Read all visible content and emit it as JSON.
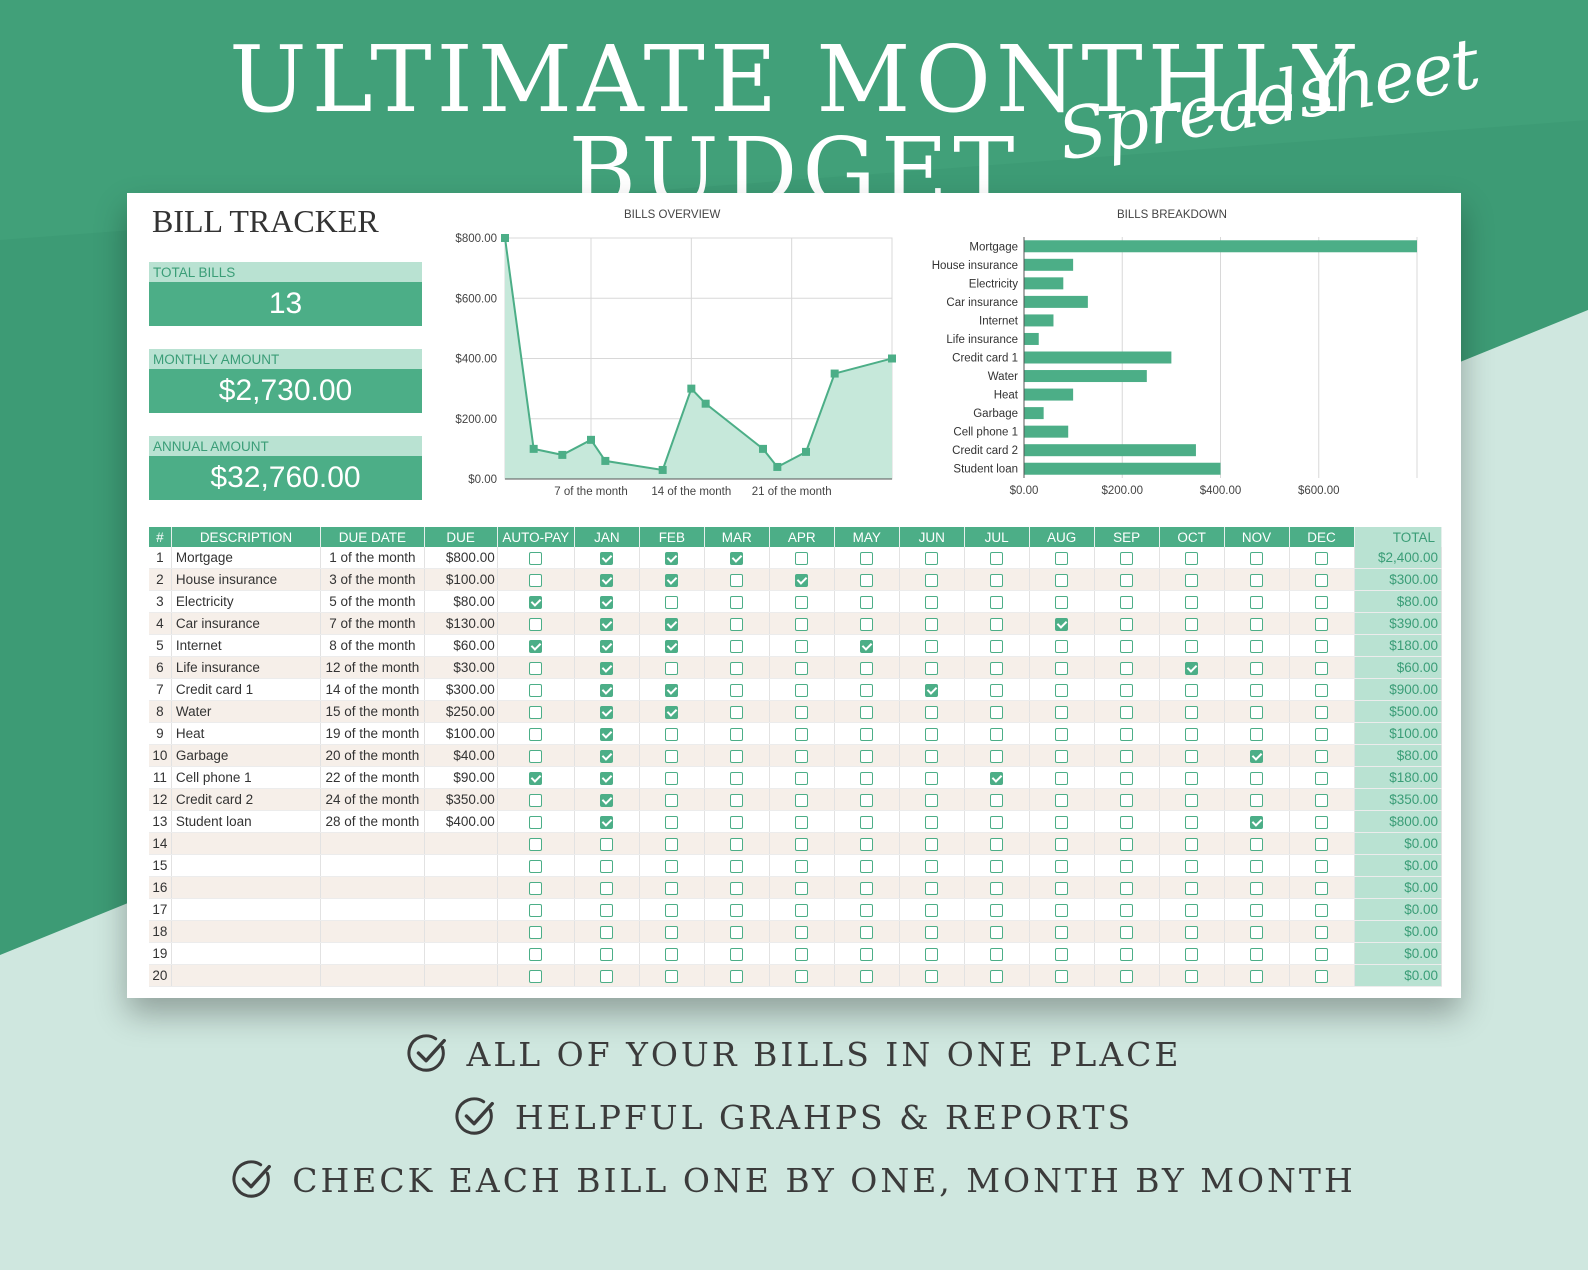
{
  "hero": {
    "title": "ULTIMATE MONTHLY BUDGET",
    "script": "Spreadsheet"
  },
  "colors": {
    "accent": "#4cae87",
    "accent_light": "#b9e2d2",
    "bg_dark": "#3d9b75",
    "bg_light": "#cfe7df"
  },
  "tracker": {
    "title": "BILL TRACKER",
    "kpis": [
      {
        "label": "TOTAL BILLS",
        "value": "13"
      },
      {
        "label": "MONTHLY AMOUNT",
        "value": "$2,730.00"
      },
      {
        "label": "ANNUAL AMOUNT",
        "value": "$32,760.00"
      }
    ]
  },
  "chart_data": [
    {
      "type": "area",
      "title": "BILLS OVERVIEW",
      "x": [
        1,
        3,
        5,
        7,
        8,
        12,
        14,
        15,
        19,
        20,
        22,
        24,
        28
      ],
      "x_tick_labels": [
        "7 of the month",
        "14 of the month",
        "21 of the month"
      ],
      "x_ticks": [
        7,
        14,
        21
      ],
      "xlim": [
        1,
        28
      ],
      "values": [
        800,
        100,
        80,
        130,
        60,
        30,
        300,
        250,
        100,
        40,
        90,
        350,
        400
      ],
      "ylim": [
        0,
        800
      ],
      "y_ticks": [
        0,
        200,
        400,
        600,
        800
      ],
      "y_tick_labels": [
        "$0.00",
        "$200.00",
        "$400.00",
        "$600.00",
        "$800.00"
      ],
      "grid": true
    },
    {
      "type": "bar",
      "orientation": "horizontal",
      "title": "BILLS BREAKDOWN",
      "categories": [
        "Mortgage",
        "House insurance",
        "Electricity",
        "Car insurance",
        "Internet",
        "Life insurance",
        "Credit card 1",
        "Water",
        "Heat",
        "Garbage",
        "Cell phone 1",
        "Credit card 2",
        "Student loan"
      ],
      "values": [
        800,
        100,
        80,
        130,
        60,
        30,
        300,
        250,
        100,
        40,
        90,
        350,
        400
      ],
      "xlim": [
        0,
        800
      ],
      "x_ticks": [
        0,
        200,
        400,
        600
      ],
      "x_tick_labels": [
        "$0.00",
        "$200.00",
        "$400.00",
        "$600.00"
      ],
      "grid": true
    }
  ],
  "table": {
    "headers": {
      "num": "#",
      "desc": "DESCRIPTION",
      "due_date": "DUE DATE",
      "due": "DUE",
      "autopay": "AUTO-PAY",
      "total": "TOTAL"
    },
    "months": [
      "JAN",
      "FEB",
      "MAR",
      "APR",
      "MAY",
      "JUN",
      "JUL",
      "AUG",
      "SEP",
      "OCT",
      "NOV",
      "DEC"
    ],
    "rows": [
      {
        "n": "1",
        "desc": "Mortgage",
        "date": "1 of the month",
        "due": "$800.00",
        "autopay": false,
        "checks": [
          1,
          1,
          1,
          0,
          0,
          0,
          0,
          0,
          0,
          0,
          0,
          0
        ],
        "total": "$2,400.00"
      },
      {
        "n": "2",
        "desc": "House insurance",
        "date": "3 of the month",
        "due": "$100.00",
        "autopay": false,
        "checks": [
          1,
          1,
          0,
          1,
          0,
          0,
          0,
          0,
          0,
          0,
          0,
          0
        ],
        "total": "$300.00"
      },
      {
        "n": "3",
        "desc": "Electricity",
        "date": "5 of the month",
        "due": "$80.00",
        "autopay": true,
        "checks": [
          1,
          0,
          0,
          0,
          0,
          0,
          0,
          0,
          0,
          0,
          0,
          0
        ],
        "total": "$80.00"
      },
      {
        "n": "4",
        "desc": "Car insurance",
        "date": "7 of the month",
        "due": "$130.00",
        "autopay": false,
        "checks": [
          1,
          1,
          0,
          0,
          0,
          0,
          0,
          1,
          0,
          0,
          0,
          0
        ],
        "total": "$390.00"
      },
      {
        "n": "5",
        "desc": "Internet",
        "date": "8 of the month",
        "due": "$60.00",
        "autopay": true,
        "checks": [
          1,
          1,
          0,
          0,
          1,
          0,
          0,
          0,
          0,
          0,
          0,
          0
        ],
        "total": "$180.00"
      },
      {
        "n": "6",
        "desc": "Life insurance",
        "date": "12 of the month",
        "due": "$30.00",
        "autopay": false,
        "checks": [
          1,
          0,
          0,
          0,
          0,
          0,
          0,
          0,
          0,
          1,
          0,
          0
        ],
        "total": "$60.00"
      },
      {
        "n": "7",
        "desc": "Credit card 1",
        "date": "14 of the month",
        "due": "$300.00",
        "autopay": false,
        "checks": [
          1,
          1,
          0,
          0,
          0,
          1,
          0,
          0,
          0,
          0,
          0,
          0
        ],
        "total": "$900.00"
      },
      {
        "n": "8",
        "desc": "Water",
        "date": "15 of the month",
        "due": "$250.00",
        "autopay": false,
        "checks": [
          1,
          1,
          0,
          0,
          0,
          0,
          0,
          0,
          0,
          0,
          0,
          0
        ],
        "total": "$500.00"
      },
      {
        "n": "9",
        "desc": "Heat",
        "date": "19 of the month",
        "due": "$100.00",
        "autopay": false,
        "checks": [
          1,
          0,
          0,
          0,
          0,
          0,
          0,
          0,
          0,
          0,
          0,
          0
        ],
        "total": "$100.00"
      },
      {
        "n": "10",
        "desc": "Garbage",
        "date": "20 of the month",
        "due": "$40.00",
        "autopay": false,
        "checks": [
          1,
          0,
          0,
          0,
          0,
          0,
          0,
          0,
          0,
          0,
          1,
          0
        ],
        "total": "$80.00"
      },
      {
        "n": "11",
        "desc": "Cell phone 1",
        "date": "22 of the month",
        "due": "$90.00",
        "autopay": true,
        "checks": [
          1,
          0,
          0,
          0,
          0,
          0,
          1,
          0,
          0,
          0,
          0,
          0
        ],
        "total": "$180.00"
      },
      {
        "n": "12",
        "desc": "Credit card 2",
        "date": "24 of the month",
        "due": "$350.00",
        "autopay": false,
        "checks": [
          1,
          0,
          0,
          0,
          0,
          0,
          0,
          0,
          0,
          0,
          0,
          0
        ],
        "total": "$350.00"
      },
      {
        "n": "13",
        "desc": "Student loan",
        "date": "28 of the month",
        "due": "$400.00",
        "autopay": false,
        "checks": [
          1,
          0,
          0,
          0,
          0,
          0,
          0,
          0,
          0,
          0,
          1,
          0
        ],
        "total": "$800.00"
      },
      {
        "n": "14",
        "desc": "",
        "date": "",
        "due": "",
        "autopay": false,
        "checks": [
          0,
          0,
          0,
          0,
          0,
          0,
          0,
          0,
          0,
          0,
          0,
          0
        ],
        "total": "$0.00"
      },
      {
        "n": "15",
        "desc": "",
        "date": "",
        "due": "",
        "autopay": false,
        "checks": [
          0,
          0,
          0,
          0,
          0,
          0,
          0,
          0,
          0,
          0,
          0,
          0
        ],
        "total": "$0.00"
      },
      {
        "n": "16",
        "desc": "",
        "date": "",
        "due": "",
        "autopay": false,
        "checks": [
          0,
          0,
          0,
          0,
          0,
          0,
          0,
          0,
          0,
          0,
          0,
          0
        ],
        "total": "$0.00"
      },
      {
        "n": "17",
        "desc": "",
        "date": "",
        "due": "",
        "autopay": false,
        "checks": [
          0,
          0,
          0,
          0,
          0,
          0,
          0,
          0,
          0,
          0,
          0,
          0
        ],
        "total": "$0.00"
      },
      {
        "n": "18",
        "desc": "",
        "date": "",
        "due": "",
        "autopay": false,
        "checks": [
          0,
          0,
          0,
          0,
          0,
          0,
          0,
          0,
          0,
          0,
          0,
          0
        ],
        "total": "$0.00"
      },
      {
        "n": "19",
        "desc": "",
        "date": "",
        "due": "",
        "autopay": false,
        "checks": [
          0,
          0,
          0,
          0,
          0,
          0,
          0,
          0,
          0,
          0,
          0,
          0
        ],
        "total": "$0.00"
      },
      {
        "n": "20",
        "desc": "",
        "date": "",
        "due": "",
        "autopay": false,
        "checks": [
          0,
          0,
          0,
          0,
          0,
          0,
          0,
          0,
          0,
          0,
          0,
          0
        ],
        "total": "$0.00"
      }
    ]
  },
  "features": [
    {
      "icon": "check-circle-icon",
      "text": "ALL OF YOUR BILLS IN ONE PLACE"
    },
    {
      "icon": "check-circle-icon",
      "text": "HELPFUL GRAHPS & REPORTS"
    },
    {
      "icon": "check-circle-icon",
      "text": "CHECK EACH BILL ONE BY ONE, MONTH BY MONTH"
    }
  ]
}
